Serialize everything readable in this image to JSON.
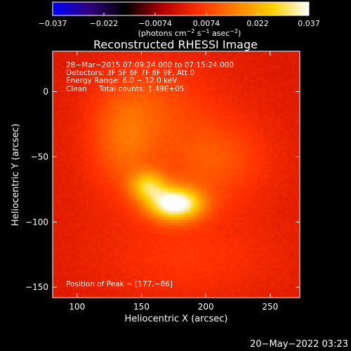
{
  "chart_data": {
    "type": "heatmap",
    "title": "Reconstructed RHESSI Image",
    "xlabel": "Heliocentric X (arcsec)",
    "ylabel": "Heliocentric Y (arcsec)",
    "xlim": [
      81,
      273
    ],
    "ylim": [
      -158,
      31
    ],
    "x_ticks": [
      100,
      150,
      200,
      250
    ],
    "y_ticks": [
      0,
      -50,
      -100,
      -150
    ],
    "colorbar": {
      "min": -0.037,
      "max": 0.037,
      "tick_labels": [
        "−0.037",
        "−0.022",
        "−0.0074",
        "0.0074",
        "0.022",
        "0.037"
      ],
      "units_label_parts": [
        "(photons cm",
        "−2",
        " s",
        "−1",
        " asec",
        "−2",
        ")"
      ],
      "colors": [
        "#0000ff",
        "#30007a",
        "#000000",
        "#b30000",
        "#ff3000",
        "#ff8000",
        "#ffd000",
        "#ffffff"
      ]
    },
    "annotations": [
      "28−Mar−2015 07:09:24.000 to 07:15:24.000",
      "Detectors: 3F 5F 6F 7F 8F 9F, Att 0",
      "Energy Range: 6.0 − 12.0 keV",
      "Clean     Total counts: 1.49E+05"
    ],
    "peak_label": "Position of Peak = [177,−86]",
    "peak": [
      177,
      -86
    ],
    "sources": [
      {
        "x": 176,
        "y": -86,
        "sx": 15,
        "sy": 9,
        "amp": 0.037
      },
      {
        "x": 155,
        "y": -72,
        "sx": 10,
        "sy": 8,
        "amp": 0.02
      },
      {
        "x": 137,
        "y": -38,
        "sx": 18,
        "sy": 26,
        "amp": 0.01
      },
      {
        "x": 205,
        "y": -52,
        "sx": 28,
        "sy": 22,
        "amp": 0.008
      },
      {
        "x": 160,
        "y": -8,
        "sx": 30,
        "sy": 22,
        "amp": 0.006
      },
      {
        "x": 190,
        "y": -130,
        "sx": 50,
        "sy": 22,
        "amp": 0.004
      },
      {
        "x": 176,
        "y": -60,
        "sx": 75,
        "sy": 75,
        "amp": 0.003
      }
    ]
  },
  "footer": {
    "timestamp": "20−May−2022 03:23"
  }
}
